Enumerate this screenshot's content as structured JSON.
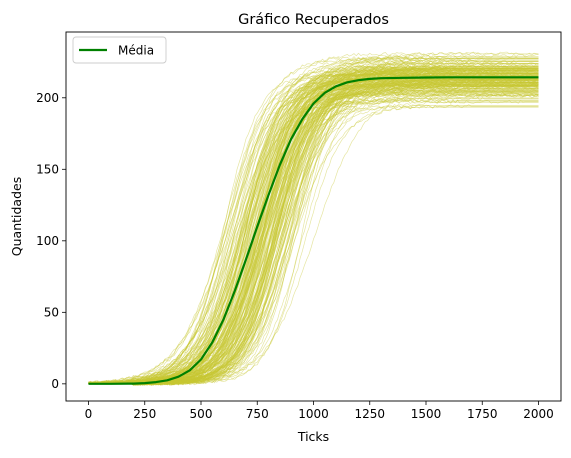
{
  "chart_data": {
    "type": "line",
    "title": "Gráfico Recuperados",
    "xlabel": "Ticks",
    "ylabel": "Quantidades",
    "xlim": [
      -100,
      2100
    ],
    "ylim": [
      -12,
      246
    ],
    "x_ticks": [
      0,
      250,
      500,
      750,
      1000,
      1250,
      1500,
      1750,
      2000
    ],
    "x_tick_labels": [
      "0",
      "250",
      "500",
      "750",
      "1000",
      "1250",
      "1500",
      "1750",
      "2000"
    ],
    "y_ticks": [
      0,
      50,
      100,
      150,
      200
    ],
    "y_tick_labels": [
      "0",
      "50",
      "100",
      "150",
      "200"
    ],
    "grid": false,
    "legend": {
      "position": "upper left",
      "entries": [
        "Média"
      ]
    },
    "series": [
      {
        "name": "Média",
        "color": "#008000",
        "x": [
          0,
          100,
          200,
          250,
          300,
          350,
          400,
          450,
          500,
          550,
          600,
          650,
          700,
          750,
          800,
          850,
          900,
          950,
          1000,
          1050,
          1100,
          1150,
          1200,
          1250,
          1300,
          1400,
          1500,
          1600,
          1700,
          1800,
          1900,
          2000
        ],
        "y": [
          0,
          0,
          0.2,
          0.5,
          1.2,
          2.5,
          5,
          9.5,
          17,
          29,
          45,
          65,
          87,
          110,
          132,
          153,
          171,
          185,
          196,
          203.5,
          208,
          210.8,
          212.3,
          213.2,
          213.7,
          214,
          214.2,
          214.3,
          214.3,
          214.3,
          214.3,
          214.3
        ]
      }
    ],
    "simulation_runs": {
      "color": "#c8c832",
      "count": 200,
      "final_value_range": [
        192,
        235
      ],
      "midpoint_range": [
        600,
        1150
      ]
    }
  }
}
